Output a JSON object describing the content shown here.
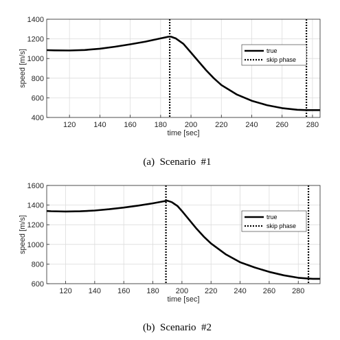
{
  "chart_data": [
    {
      "type": "line",
      "caption": "(a)  Scenario  #1",
      "xlabel": "time [sec]",
      "ylabel": "speed [m/s]",
      "xlim": [
        105,
        285
      ],
      "ylim": [
        400,
        1400
      ],
      "xticks": [
        120,
        140,
        160,
        180,
        200,
        220,
        240,
        260,
        280
      ],
      "yticks": [
        400,
        600,
        800,
        1000,
        1200,
        1400
      ],
      "grid": true,
      "legend_position": "top-right",
      "series": [
        {
          "name": "true",
          "style": "solid",
          "x": [
            105,
            110,
            120,
            130,
            140,
            150,
            160,
            170,
            180,
            185,
            187,
            190,
            195,
            200,
            205,
            210,
            215,
            220,
            230,
            240,
            250,
            260,
            270,
            276,
            280,
            285
          ],
          "y": [
            1085,
            1083,
            1082,
            1087,
            1100,
            1120,
            1145,
            1172,
            1205,
            1222,
            1222,
            1205,
            1150,
            1060,
            970,
            880,
            800,
            730,
            635,
            570,
            525,
            495,
            478,
            475,
            475,
            475
          ]
        }
      ],
      "skip_phase": {
        "name": "skip phase",
        "style": "dotted",
        "x": [
          186,
          276
        ]
      }
    },
    {
      "type": "line",
      "caption": "(b)  Scenario  #2",
      "xlabel": "time [sec]",
      "ylabel": "speed [m/s]",
      "xlim": [
        107,
        295
      ],
      "ylim": [
        600,
        1600
      ],
      "xticks": [
        120,
        140,
        160,
        180,
        200,
        220,
        240,
        260,
        280
      ],
      "yticks": [
        600,
        800,
        1000,
        1200,
        1400,
        1600
      ],
      "grid": true,
      "legend_position": "top-right",
      "series": [
        {
          "name": "true",
          "style": "solid",
          "x": [
            107,
            110,
            120,
            130,
            140,
            150,
            160,
            170,
            180,
            188,
            190,
            193,
            197,
            200,
            205,
            210,
            215,
            220,
            230,
            240,
            250,
            260,
            270,
            280,
            287,
            290,
            295
          ],
          "y": [
            1340,
            1338,
            1335,
            1337,
            1345,
            1358,
            1375,
            1395,
            1418,
            1440,
            1445,
            1430,
            1390,
            1340,
            1250,
            1160,
            1080,
            1010,
            900,
            818,
            765,
            720,
            685,
            660,
            652,
            650,
            650
          ]
        }
      ],
      "skip_phase": {
        "name": "skip phase",
        "style": "dotted",
        "x": [
          189,
          287
        ]
      }
    }
  ]
}
